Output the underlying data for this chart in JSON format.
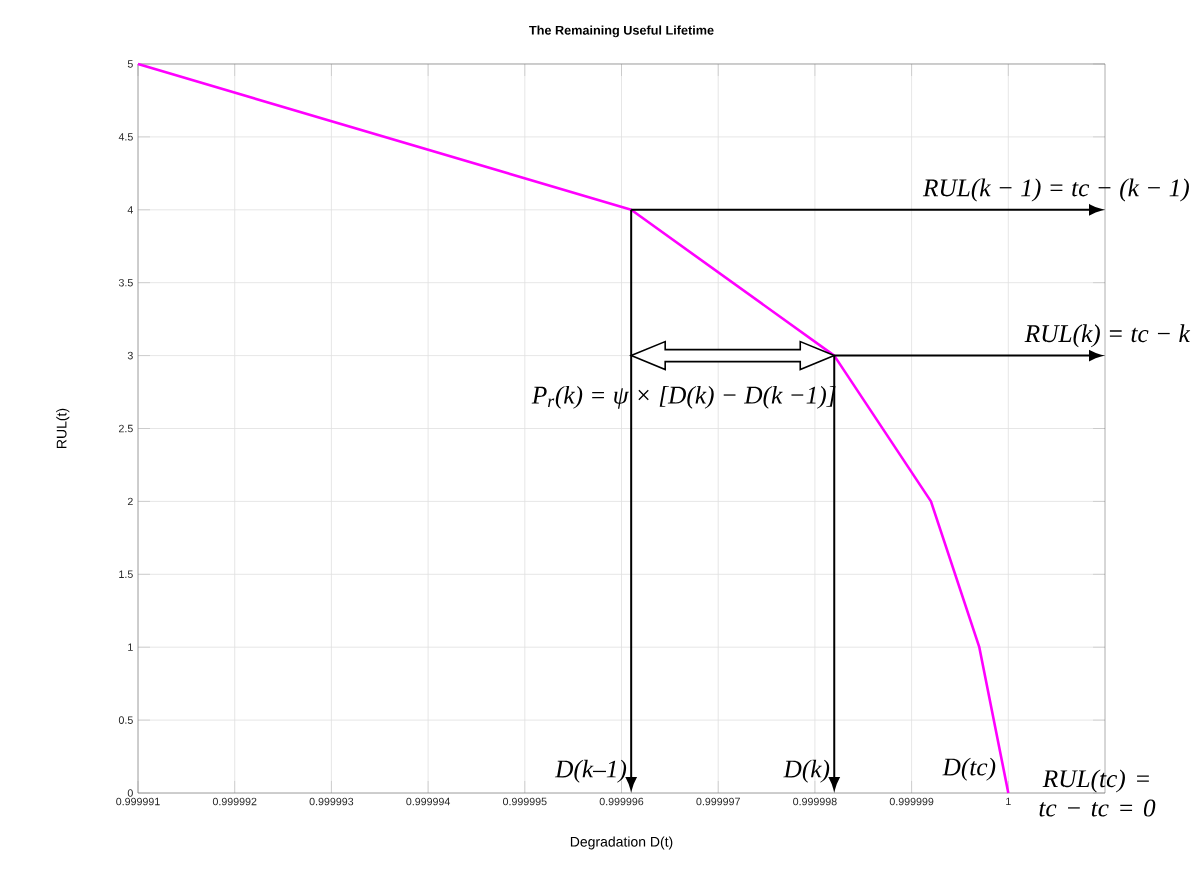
{
  "chart_data": {
    "type": "line",
    "title": "The Remaining Useful Lifetime",
    "xlabel": "Degradation D(t)",
    "ylabel": "RUL(t)",
    "series": [
      {
        "color": "#ff00ff",
        "x": [
          0.999991,
          0.9999961,
          0.9999982,
          0.9999992,
          0.9999997,
          1.0
        ],
        "values": [
          5,
          4,
          3,
          2,
          1,
          0
        ]
      }
    ],
    "xlim": [
      0.999991,
      1.000001
    ],
    "xticks": [
      0.999991,
      0.999992,
      0.999993,
      0.999994,
      0.999995,
      0.999996,
      0.999997,
      0.999998,
      0.999999,
      1
    ],
    "ylim": [
      0,
      5
    ],
    "yticks": [
      0,
      0.5,
      1,
      1.5,
      2,
      2.5,
      3,
      3.5,
      4,
      4.5,
      5
    ],
    "grid": true,
    "marker": "none",
    "line_style": "solid",
    "ref_lines": [
      {
        "axis": "x",
        "value": 0.9999961,
        "label": "D(k–1)"
      },
      {
        "axis": "x",
        "value": 0.9999982,
        "label": "D(k)"
      },
      {
        "axis": "y",
        "value": 4,
        "label": "RUL(k − 1) = tc − (k − 1)"
      },
      {
        "axis": "y",
        "value": 3,
        "label": "RUL(k) = tc − k"
      }
    ],
    "annotations": [
      {
        "text": "D(tc)",
        "x": 1,
        "y": 0
      },
      "P$_{r}$(k) = ψ × [D(k) − D(k −1)]",
      "RUL(tc) = tc − tc = 0"
    ]
  }
}
